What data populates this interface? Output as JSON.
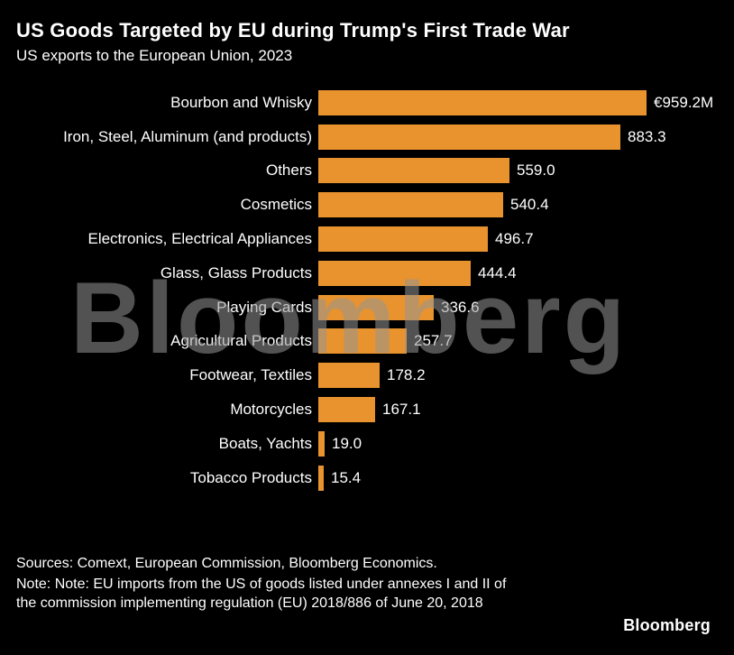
{
  "header": {
    "title": "US Goods Targeted by EU during Trump's First Trade War",
    "subtitle": "US exports to the European Union, 2023"
  },
  "watermark": "Bloomberg",
  "footer": {
    "sources": "Sources: Comext, European Commission, Bloomberg Economics.",
    "note": "Note: Note: EU imports from the US of goods listed under annexes I and II of the commission implementing regulation (EU) 2018/886 of June 20, 2018",
    "brand": "Bloomberg"
  },
  "chart_data": {
    "type": "bar",
    "orientation": "horizontal",
    "title": "US Goods Targeted by EU during Trump's First Trade War",
    "subtitle": "US exports to the European Union, 2023",
    "categories": [
      "Bourbon and Whisky",
      "Iron, Steel, Aluminum (and products)",
      "Others",
      "Cosmetics",
      "Electronics, Electrical Appliances",
      "Glass, Glass Products",
      "Playing Cards",
      "Agricultural Products",
      "Footwear, Textiles",
      "Motorcycles",
      "Boats, Yachts",
      "Tobacco Products"
    ],
    "values": [
      959.2,
      883.3,
      559.0,
      540.4,
      496.7,
      444.4,
      336.6,
      257.7,
      178.2,
      167.1,
      19.0,
      15.4
    ],
    "value_labels": [
      "€959.2M",
      "883.3",
      "559.0",
      "540.4",
      "496.7",
      "444.4",
      "336.6",
      "257.7",
      "178.2",
      "167.1",
      "19.0",
      "15.4"
    ],
    "bar_color": "#E8932E",
    "xlim": [
      0,
      959.2
    ],
    "grid": false,
    "legend": "none"
  }
}
